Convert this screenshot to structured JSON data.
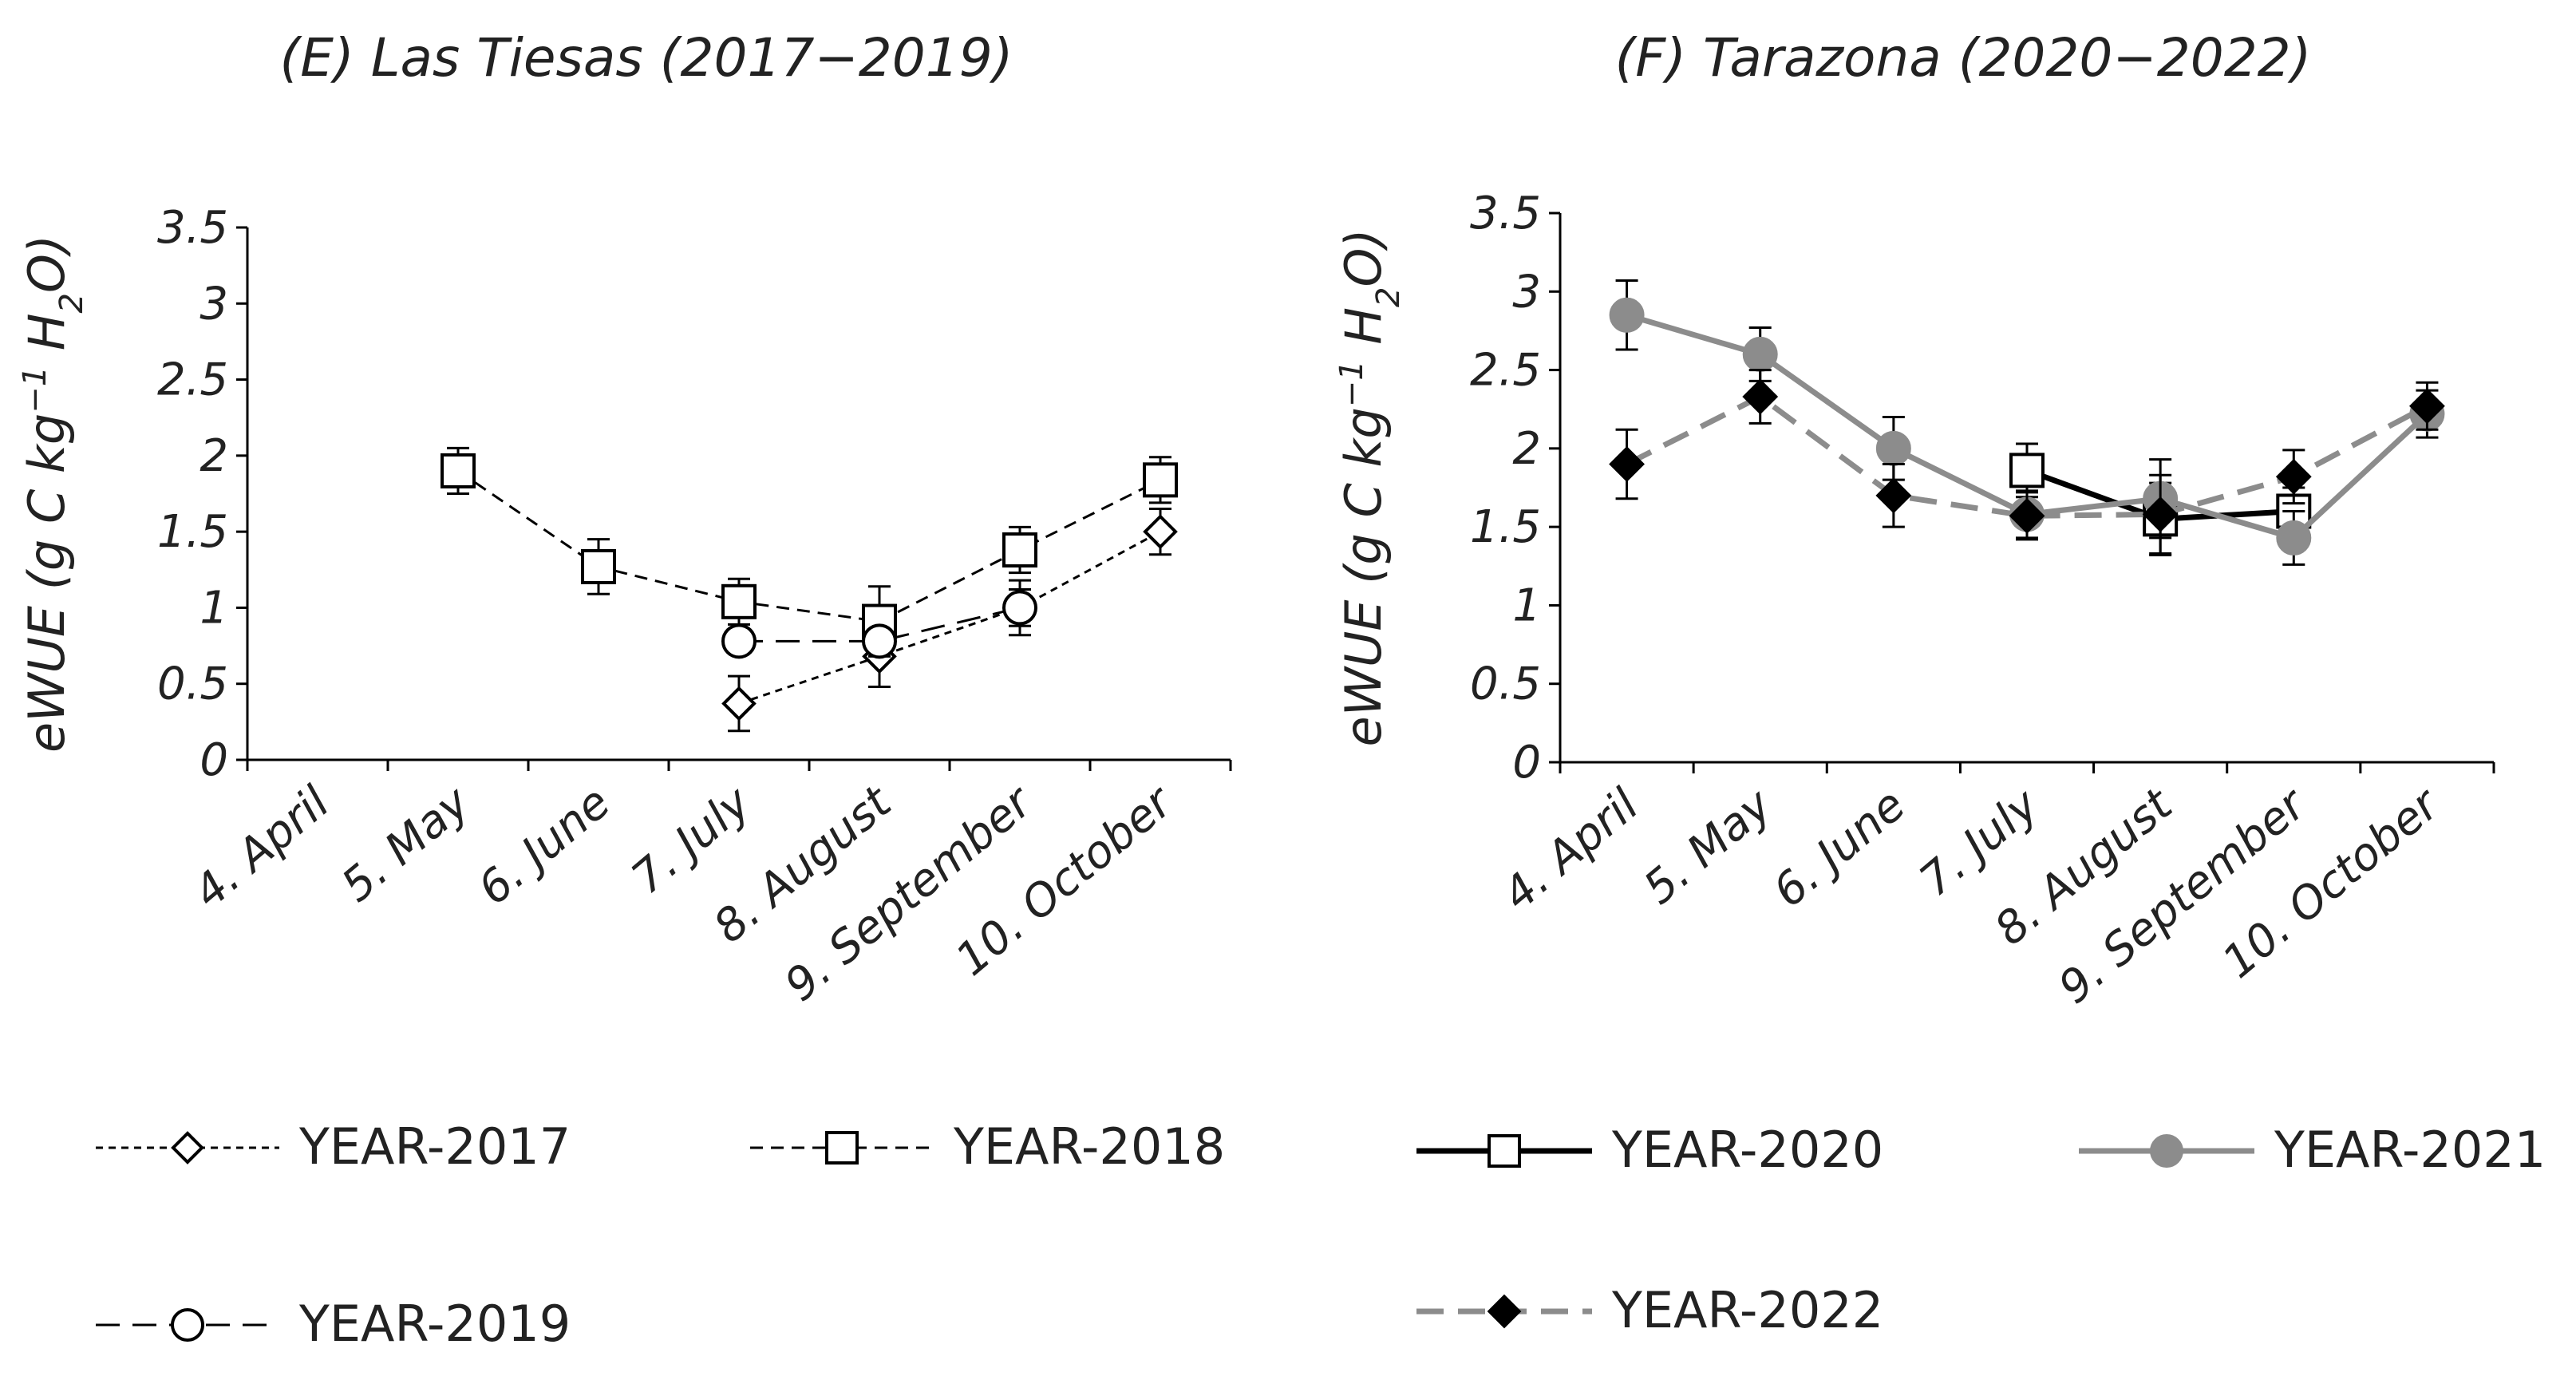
{
  "chart_data": [
    {
      "type": "line",
      "title": "(E) Las Tiesas (2017−2019)",
      "ylabel_parts": [
        "eWUE (g C kg",
        "−1",
        " H",
        "2",
        "O)"
      ],
      "categories": [
        "4. April",
        "5. May",
        "6. June",
        "7. July",
        "8. August",
        "9. September",
        "10. October"
      ],
      "ylim": [
        0,
        3.5
      ],
      "yticks": [
        "0",
        "0.5",
        "1",
        "1.5",
        "2",
        "2.5",
        "3",
        "3.5"
      ],
      "grid": false,
      "legend_position": "bottom",
      "series": [
        {
          "name": "YEAR-2017",
          "values": [
            null,
            null,
            null,
            0.37,
            0.68,
            1.0,
            1.5
          ],
          "errors": [
            null,
            null,
            null,
            0.18,
            0.2,
            0.18,
            0.15
          ],
          "marker": "diamond-open",
          "color": "#000000",
          "line": "fine-dash"
        },
        {
          "name": "YEAR-2018",
          "values": [
            null,
            1.9,
            1.27,
            1.04,
            0.91,
            1.38,
            1.84
          ],
          "errors": [
            null,
            0.15,
            0.18,
            0.15,
            0.23,
            0.15,
            0.15
          ],
          "marker": "square-open",
          "color": "#000000",
          "line": "dash"
        },
        {
          "name": "YEAR-2019",
          "values": [
            null,
            null,
            null,
            0.78,
            0.78,
            1.0,
            null
          ],
          "errors": [
            null,
            null,
            null,
            0.08,
            0.08,
            0.12,
            null
          ],
          "marker": "circle-open",
          "color": "#000000",
          "line": "long-dash"
        }
      ]
    },
    {
      "type": "line",
      "title": "(F) Tarazona (2020−2022)",
      "ylabel_parts": [
        "eWUE (g C kg",
        "−1",
        " H",
        "2",
        "O)"
      ],
      "categories": [
        "4. April",
        "5. May",
        "6. June",
        "7. July",
        "8. August",
        "9. September",
        "10. October"
      ],
      "ylim": [
        0,
        3.5
      ],
      "yticks": [
        "0",
        "0.5",
        "1",
        "1.5",
        "2",
        "2.5",
        "3",
        "3.5"
      ],
      "grid": false,
      "legend_position": "bottom",
      "series": [
        {
          "name": "YEAR-2020",
          "values": [
            null,
            null,
            null,
            1.86,
            1.55,
            1.6,
            null
          ],
          "errors": [
            null,
            null,
            null,
            0.17,
            0.23,
            0.15,
            null
          ],
          "marker": "square-open",
          "color": "#000000",
          "line": "solid"
        },
        {
          "name": "YEAR-2021",
          "values": [
            2.85,
            2.6,
            2.0,
            1.58,
            1.68,
            1.43,
            2.22
          ],
          "errors": [
            0.22,
            0.17,
            0.2,
            0.15,
            0.25,
            0.17,
            0.15
          ],
          "marker": "circle-filled",
          "color": "#8c8c8c",
          "line": "solid"
        },
        {
          "name": "YEAR-2022",
          "values": [
            1.9,
            2.33,
            1.7,
            1.57,
            1.58,
            1.82,
            2.27
          ],
          "errors": [
            0.22,
            0.17,
            0.2,
            0.15,
            0.25,
            0.17,
            0.15
          ],
          "marker": "diamond-filled",
          "color": "#000000",
          "line": "dash-gray"
        }
      ]
    }
  ]
}
